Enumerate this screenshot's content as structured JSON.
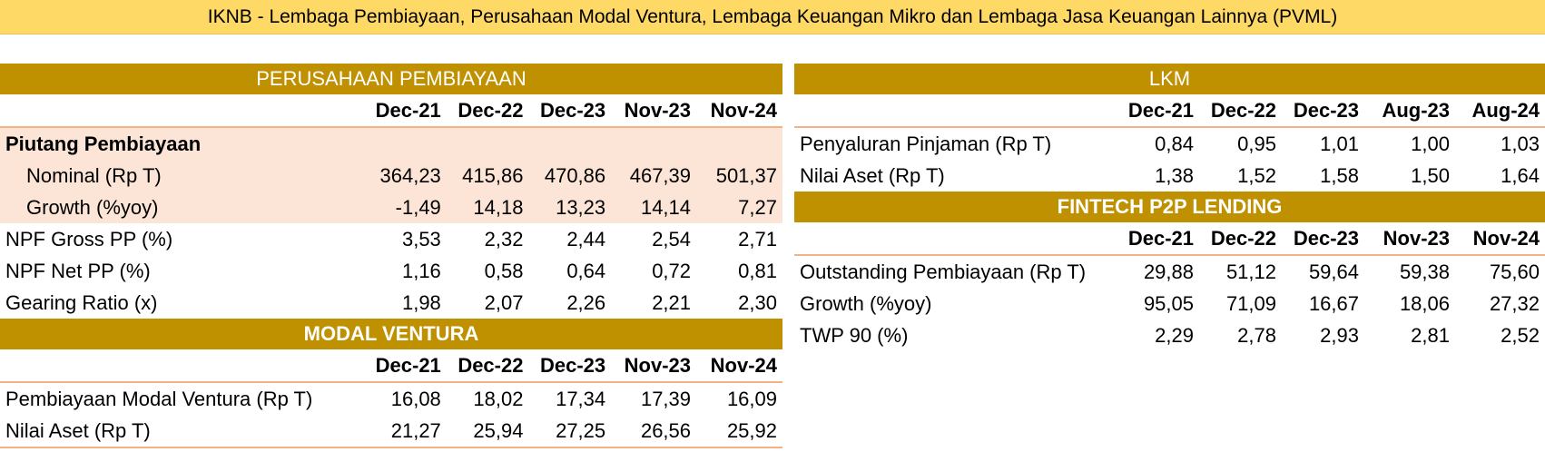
{
  "title": "IKNB - Lembaga Pembiayaan, Perusahaan Modal Ventura, Lembaga Keuangan Mikro dan Lembaga Jasa Keuangan Lainnya (PVML)",
  "pp": {
    "heading": "PERUSAHAAN PEMBIAYAAN",
    "columns": [
      "Dec-21",
      "Dec-22",
      "Dec-23",
      "Nov-23",
      "Nov-24"
    ],
    "group_label": "Piutang Pembiayaan",
    "rows": [
      {
        "label": "Nominal (Rp T)",
        "values": [
          "364,23",
          "415,86",
          "470,86",
          "467,39",
          "501,37"
        ]
      },
      {
        "label": "Growth (%yoy)",
        "values": [
          "-1,49",
          "14,18",
          "13,23",
          "14,14",
          "7,27"
        ]
      },
      {
        "label": "NPF Gross PP (%)",
        "values": [
          "3,53",
          "2,32",
          "2,44",
          "2,54",
          "2,71"
        ]
      },
      {
        "label": "NPF Net PP (%)",
        "values": [
          "1,16",
          "0,58",
          "0,64",
          "0,72",
          "0,81"
        ]
      },
      {
        "label": "Gearing Ratio (x)",
        "values": [
          "1,98",
          "2,07",
          "2,26",
          "2,21",
          "2,30"
        ]
      }
    ]
  },
  "mv": {
    "heading": "MODAL VENTURA",
    "columns": [
      "Dec-21",
      "Dec-22",
      "Dec-23",
      "Nov-23",
      "Nov-24"
    ],
    "rows": [
      {
        "label": "Pembiayaan Modal Ventura (Rp T)",
        "values": [
          "16,08",
          "18,02",
          "17,34",
          "17,39",
          "16,09"
        ]
      },
      {
        "label": "Nilai Aset (Rp T)",
        "values": [
          "21,27",
          "25,94",
          "27,25",
          "26,56",
          "25,92"
        ]
      }
    ]
  },
  "lkm": {
    "heading": "LKM",
    "columns": [
      "Dec-21",
      "Dec-22",
      "Dec-23",
      "Aug-23",
      "Aug-24"
    ],
    "rows": [
      {
        "label": "Penyaluran Pinjaman (Rp T)",
        "values": [
          "0,84",
          "0,95",
          "1,01",
          "1,00",
          "1,03"
        ]
      },
      {
        "label": "Nilai Aset (Rp T)",
        "values": [
          "1,38",
          "1,52",
          "1,58",
          "1,50",
          "1,64"
        ]
      }
    ]
  },
  "p2p": {
    "heading": "FINTECH P2P LENDING",
    "columns": [
      "Dec-21",
      "Dec-22",
      "Dec-23",
      "Nov-23",
      "Nov-24"
    ],
    "rows": [
      {
        "label": "Outstanding Pembiayaan (Rp T)",
        "values": [
          "29,88",
          "51,12",
          "59,64",
          "59,38",
          "75,60"
        ]
      },
      {
        "label": "Growth (%yoy)",
        "values": [
          "95,05",
          "71,09",
          "16,67",
          "18,06",
          "27,32"
        ]
      },
      {
        "label": "TWP 90 (%)",
        "values": [
          "2,29",
          "2,78",
          "2,93",
          "2,81",
          "2,52"
        ]
      }
    ]
  },
  "colors": {
    "header_gold": "#bf9000",
    "title_yellow": "#ffd966",
    "highlight_pink": "#fce4d6",
    "rule_orange": "#f4b183"
  }
}
